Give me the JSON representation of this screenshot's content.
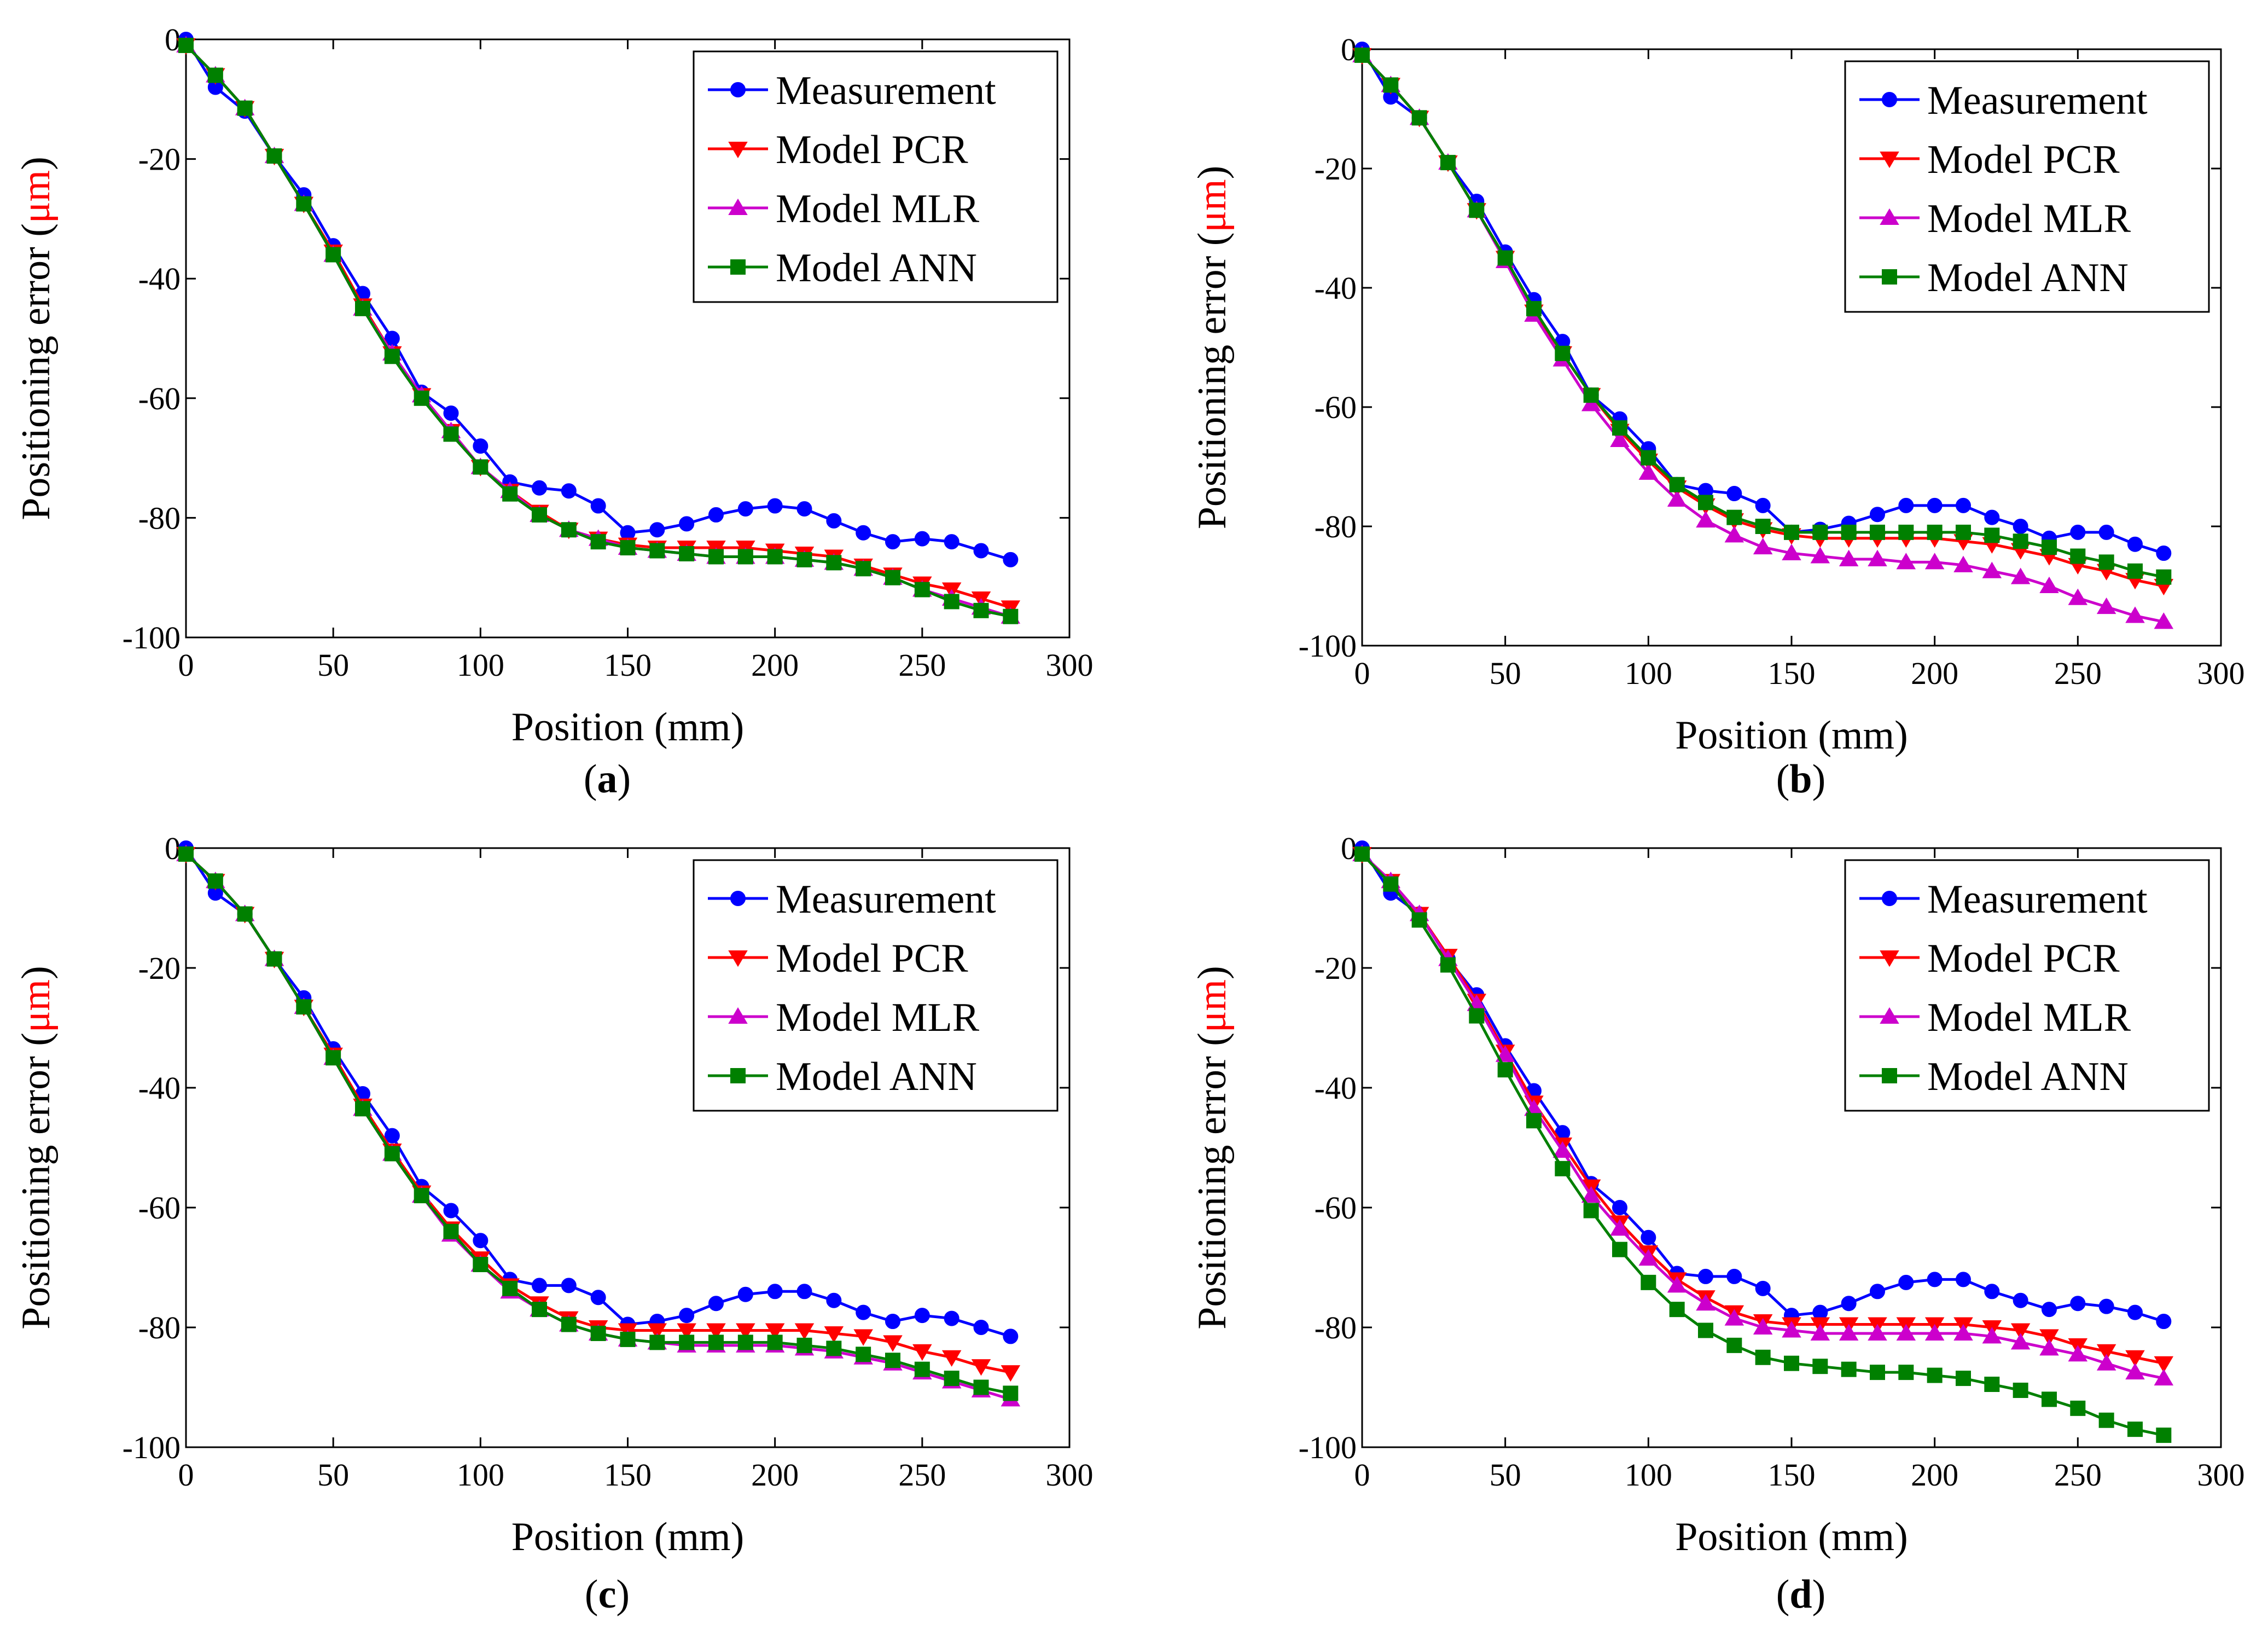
{
  "figure": {
    "panel_labels": [
      "a",
      "b",
      "c",
      "d"
    ]
  },
  "common": {
    "xlabel": "Position (mm)",
    "ylabel_prefix": "Positioning error (",
    "ylabel_unit": "μm",
    "ylabel_suffix": ")",
    "ylabel_unit_color": "#ff0000"
  },
  "chart_data": [
    {
      "type": "line",
      "panel": "a",
      "xlabel": "Position (mm)",
      "ylabel": "Positioning error (μm)",
      "xlim": [
        0,
        300
      ],
      "ylim": [
        -100,
        0
      ],
      "xticks": [
        0,
        50,
        100,
        150,
        200,
        250,
        300
      ],
      "yticks": [
        0,
        -20,
        -40,
        -60,
        -80,
        -100
      ],
      "grid": false,
      "legend": "top-right",
      "x": [
        0,
        10,
        20,
        30,
        40,
        50,
        60,
        70,
        80,
        90,
        100,
        110,
        120,
        130,
        140,
        150,
        160,
        170,
        180,
        190,
        200,
        210,
        220,
        230,
        240,
        250,
        260,
        270,
        280
      ],
      "series": [
        {
          "name": "Measurement",
          "color": "#0000ff",
          "marker": "circle",
          "values": [
            0,
            -8,
            -12,
            -19.5,
            -26,
            -34.5,
            -42.5,
            -50,
            -59,
            -62.5,
            -68,
            -74,
            -75,
            -75.5,
            -78,
            -82.5,
            -82,
            -81,
            -79.5,
            -78.5,
            -78,
            -78.5,
            -80.5,
            -82.5,
            -84,
            -83.5,
            -84,
            -85.5,
            -87
          ]
        },
        {
          "name": "Model PCR",
          "color": "#ff0000",
          "marker": "triangle-down",
          "values": [
            -1,
            -6,
            -11.5,
            -19.5,
            -27.5,
            -35.5,
            -44.5,
            -52.5,
            -59.5,
            -65.5,
            -71.5,
            -75.5,
            -79,
            -82,
            -83.5,
            -84.5,
            -85,
            -85,
            -85,
            -85,
            -85.5,
            -86,
            -86.5,
            -88,
            -89.5,
            -91,
            -92,
            -93.5,
            -95
          ]
        },
        {
          "name": "Model MLR",
          "color": "#cc00cc",
          "marker": "triangle-up",
          "values": [
            -1,
            -6,
            -11.5,
            -19.5,
            -27.5,
            -36,
            -45,
            -52.5,
            -59.5,
            -65.5,
            -71.5,
            -75.5,
            -79.5,
            -82,
            -83.5,
            -85,
            -85.5,
            -86,
            -86.5,
            -86.5,
            -86.5,
            -87,
            -87.5,
            -88.5,
            -90,
            -92,
            -93.5,
            -95,
            -96.5
          ]
        },
        {
          "name": "Model ANN",
          "color": "#008000",
          "marker": "square",
          "values": [
            -1,
            -6,
            -11.5,
            -19.5,
            -27.5,
            -36,
            -45,
            -53,
            -60,
            -66,
            -71.5,
            -76,
            -79.5,
            -82,
            -84,
            -85,
            -85.5,
            -86,
            -86.5,
            -86.5,
            -86.5,
            -87,
            -87.5,
            -88.5,
            -90,
            -92,
            -94,
            -95.5,
            -96.5
          ]
        }
      ]
    },
    {
      "type": "line",
      "panel": "b",
      "xlabel": "Position (mm)",
      "ylabel": "Positioning error (μm)",
      "xlim": [
        0,
        300
      ],
      "ylim": [
        -100,
        0
      ],
      "xticks": [
        0,
        50,
        100,
        150,
        200,
        250,
        300
      ],
      "yticks": [
        0,
        -20,
        -40,
        -60,
        -80,
        -100
      ],
      "grid": false,
      "legend": "top-right",
      "x": [
        0,
        10,
        20,
        30,
        40,
        50,
        60,
        70,
        80,
        90,
        100,
        110,
        120,
        130,
        140,
        150,
        160,
        170,
        180,
        190,
        200,
        210,
        220,
        230,
        240,
        250,
        260,
        270,
        280
      ],
      "series": [
        {
          "name": "Measurement",
          "color": "#0000ff",
          "marker": "circle",
          "values": [
            0,
            -8,
            -11.5,
            -19,
            -25.5,
            -34,
            -42,
            -49,
            -58,
            -62,
            -67,
            -73,
            -74,
            -74.5,
            -76.5,
            -81,
            -80.5,
            -79.5,
            -78,
            -76.5,
            -76.5,
            -76.5,
            -78.5,
            -80,
            -82,
            -81,
            -81,
            -83,
            -84.5
          ]
        },
        {
          "name": "Model PCR",
          "color": "#ff0000",
          "marker": "triangle-down",
          "values": [
            -1,
            -6,
            -11.5,
            -19,
            -27,
            -35,
            -44,
            -51,
            -58,
            -64,
            -69,
            -73.5,
            -76.5,
            -79,
            -80.5,
            -81.5,
            -82,
            -82,
            -82,
            -82,
            -82,
            -82.5,
            -83,
            -84,
            -85,
            -86.5,
            -87.5,
            -89,
            -90
          ]
        },
        {
          "name": "Model MLR",
          "color": "#cc00cc",
          "marker": "triangle-up",
          "values": [
            -1,
            -6,
            -11.5,
            -19,
            -27,
            -35.5,
            -44.5,
            -52,
            -59.5,
            -65.5,
            -71,
            -75.5,
            -79,
            -81.5,
            -83.5,
            -84.5,
            -85,
            -85.5,
            -85.5,
            -86,
            -86,
            -86.5,
            -87.5,
            -88.5,
            -90,
            -92,
            -93.5,
            -95,
            -96
          ]
        },
        {
          "name": "Model ANN",
          "color": "#008000",
          "marker": "square",
          "values": [
            -1,
            -6,
            -11.5,
            -19,
            -27,
            -35,
            -43.5,
            -51,
            -58,
            -63.5,
            -68.5,
            -73,
            -76,
            -78.5,
            -80,
            -81,
            -81,
            -81,
            -81,
            -81,
            -81,
            -81,
            -81.5,
            -82.5,
            -83.5,
            -85,
            -86,
            -87.5,
            -88.5
          ]
        }
      ]
    },
    {
      "type": "line",
      "panel": "c",
      "xlabel": "Position (mm)",
      "ylabel": "Positioning error (μm)",
      "xlim": [
        0,
        300
      ],
      "ylim": [
        -100,
        0
      ],
      "xticks": [
        0,
        50,
        100,
        150,
        200,
        250,
        300
      ],
      "yticks": [
        0,
        -20,
        -40,
        -60,
        -80,
        -100
      ],
      "grid": false,
      "legend": "top-right",
      "x": [
        0,
        10,
        20,
        30,
        40,
        50,
        60,
        70,
        80,
        90,
        100,
        110,
        120,
        130,
        140,
        150,
        160,
        170,
        180,
        190,
        200,
        210,
        220,
        230,
        240,
        250,
        260,
        270,
        280
      ],
      "series": [
        {
          "name": "Measurement",
          "color": "#0000ff",
          "marker": "circle",
          "values": [
            0,
            -7.5,
            -11,
            -18.5,
            -25,
            -33.5,
            -41,
            -48,
            -56.5,
            -60.5,
            -65.5,
            -72,
            -73,
            -73,
            -75,
            -79.5,
            -79,
            -78,
            -76,
            -74.5,
            -74,
            -74,
            -75.5,
            -77.5,
            -79,
            -78,
            -78.5,
            -80,
            -81.5
          ]
        },
        {
          "name": "Model PCR",
          "color": "#ff0000",
          "marker": "triangle-down",
          "values": [
            -1,
            -5.5,
            -11,
            -18.5,
            -26.5,
            -34.5,
            -43,
            -50.5,
            -57.5,
            -63.5,
            -68.5,
            -73,
            -76,
            -78.5,
            -80,
            -80.5,
            -80.5,
            -80.5,
            -80.5,
            -80.5,
            -80.5,
            -80.5,
            -81,
            -81.5,
            -82.5,
            -84,
            -85,
            -86.5,
            -87.5
          ]
        },
        {
          "name": "Model MLR",
          "color": "#cc00cc",
          "marker": "triangle-up",
          "values": [
            -1,
            -5.5,
            -11,
            -18.5,
            -26.5,
            -35,
            -43.5,
            -51,
            -58,
            -64.5,
            -69.5,
            -74,
            -77,
            -79.5,
            -81,
            -82,
            -82.5,
            -83,
            -83,
            -83,
            -83,
            -83.5,
            -84,
            -85,
            -86,
            -87.5,
            -89,
            -90.5,
            -92
          ]
        },
        {
          "name": "Model ANN",
          "color": "#008000",
          "marker": "square",
          "values": [
            -1,
            -5.5,
            -11,
            -18.5,
            -26.5,
            -35,
            -43.5,
            -51,
            -58,
            -64,
            -69.5,
            -73.5,
            -77,
            -79.5,
            -81,
            -82,
            -82.5,
            -82.5,
            -82.5,
            -82.5,
            -82.5,
            -83,
            -83.5,
            -84.5,
            -85.5,
            -87,
            -88.5,
            -90,
            -91
          ]
        }
      ]
    },
    {
      "type": "line",
      "panel": "d",
      "xlabel": "Position (mm)",
      "ylabel": "Positioning error (μm)",
      "xlim": [
        0,
        300
      ],
      "ylim": [
        -100,
        0
      ],
      "xticks": [
        0,
        50,
        100,
        150,
        200,
        250,
        300
      ],
      "yticks": [
        0,
        -20,
        -40,
        -60,
        -80,
        -100
      ],
      "grid": false,
      "legend": "top-right",
      "x": [
        0,
        10,
        20,
        30,
        40,
        50,
        60,
        70,
        80,
        90,
        100,
        110,
        120,
        130,
        140,
        150,
        160,
        170,
        180,
        190,
        200,
        210,
        220,
        230,
        240,
        250,
        260,
        270,
        280
      ],
      "series": [
        {
          "name": "Measurement",
          "color": "#0000ff",
          "marker": "circle",
          "values": [
            0,
            -7.5,
            -11,
            -18.5,
            -24.5,
            -33,
            -40.5,
            -47.5,
            -56,
            -60,
            -65,
            -71,
            -71.5,
            -71.5,
            -73.5,
            -78,
            -77.5,
            -76,
            -74,
            -72.5,
            -72,
            -72,
            -74,
            -75.5,
            -77,
            -76,
            -76.5,
            -77.5,
            -79
          ]
        },
        {
          "name": "Model PCR",
          "color": "#ff0000",
          "marker": "triangle-down",
          "values": [
            -1,
            -5.5,
            -11,
            -18,
            -25.5,
            -34,
            -42.5,
            -49.5,
            -56.5,
            -62.5,
            -67.5,
            -72,
            -75,
            -77.5,
            -79,
            -79.5,
            -79.5,
            -79.5,
            -79.5,
            -79.5,
            -79.5,
            -79.5,
            -80,
            -80.5,
            -81.5,
            -83,
            -84,
            -85,
            -86
          ]
        },
        {
          "name": "Model MLR",
          "color": "#cc00cc",
          "marker": "triangle-up",
          "values": [
            -1,
            -5.5,
            -11,
            -18.5,
            -26,
            -34.5,
            -43.5,
            -50.5,
            -58,
            -63.5,
            -68.5,
            -73,
            -76,
            -78.5,
            -80,
            -80.5,
            -81,
            -81,
            -81,
            -81,
            -81,
            -81,
            -81.5,
            -82.5,
            -83.5,
            -84.5,
            -86,
            -87.5,
            -88.5
          ]
        },
        {
          "name": "Model ANN",
          "color": "#008000",
          "marker": "square",
          "values": [
            -1,
            -6,
            -12,
            -19.5,
            -28,
            -37,
            -45.5,
            -53.5,
            -60.5,
            -67,
            -72.5,
            -77,
            -80.5,
            -83,
            -85,
            -86,
            -86.5,
            -87,
            -87.5,
            -87.5,
            -88,
            -88.5,
            -89.5,
            -90.5,
            -92,
            -93.5,
            -95.5,
            -97,
            -98
          ]
        }
      ]
    }
  ]
}
